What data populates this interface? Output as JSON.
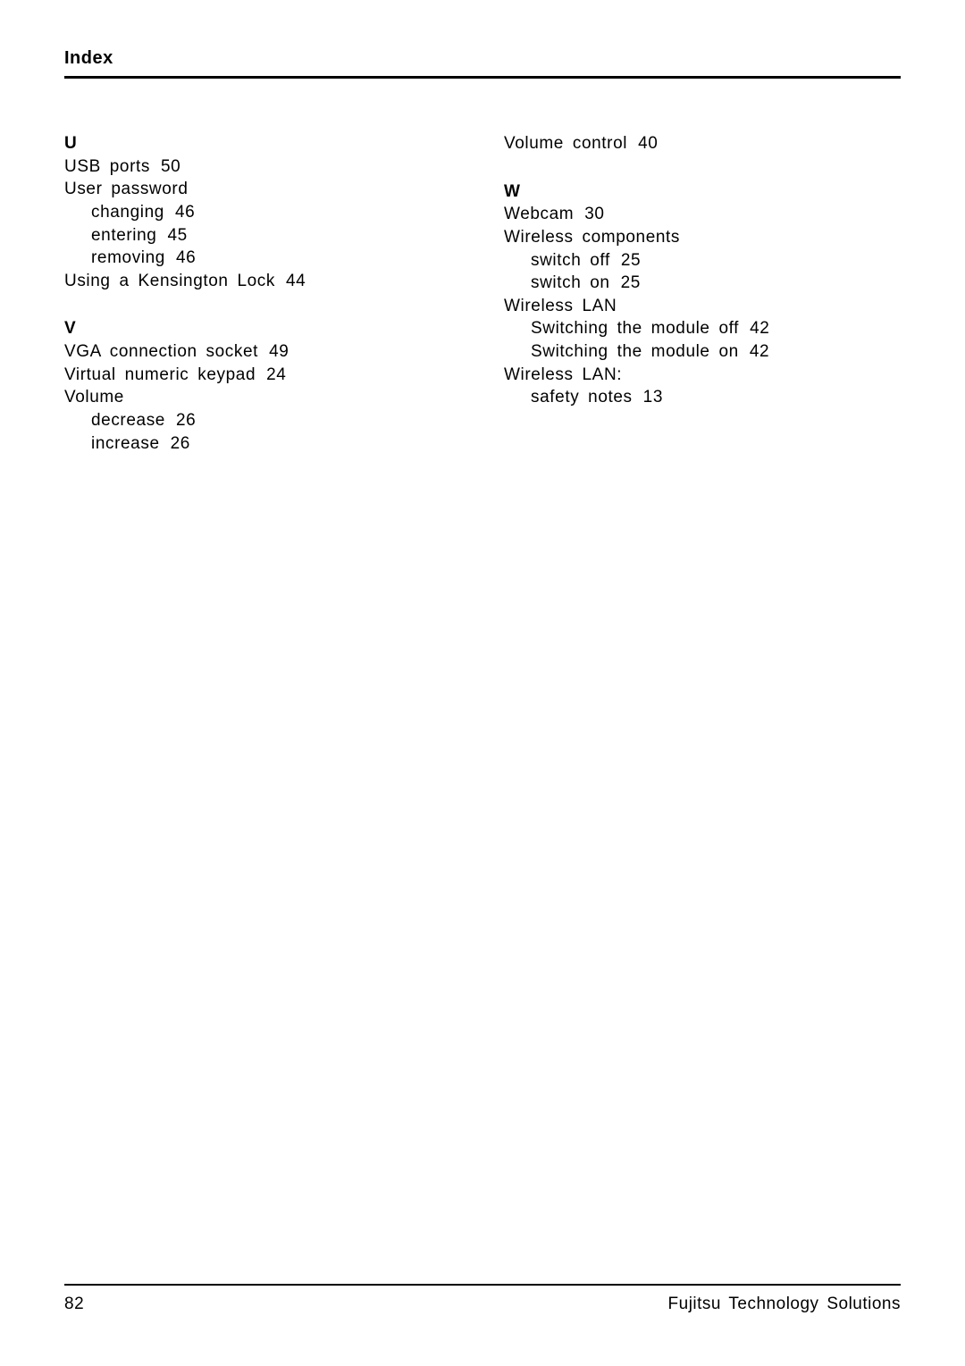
{
  "header": {
    "title": "Index"
  },
  "left": {
    "u": {
      "letter": "U",
      "usb_ports": {
        "text": "USB ports",
        "page": "50"
      },
      "user_password": {
        "text": "User password"
      },
      "changing": {
        "text": "changing",
        "page": "46"
      },
      "entering": {
        "text": "entering",
        "page": "45"
      },
      "removing": {
        "text": "removing",
        "page": "46"
      },
      "kensington": {
        "text": "Using a Kensington Lock",
        "page": "44"
      }
    },
    "v": {
      "letter": "V",
      "vga": {
        "text": "VGA connection socket",
        "page": "49"
      },
      "virtual_keypad": {
        "text": "Virtual numeric keypad",
        "page": "24"
      },
      "volume": {
        "text": "Volume"
      },
      "decrease": {
        "text": "decrease",
        "page": "26"
      },
      "increase": {
        "text": "increase",
        "page": "26"
      }
    }
  },
  "right": {
    "volume_control": {
      "text": "Volume control",
      "page": "40"
    },
    "w": {
      "letter": "W",
      "webcam": {
        "text": "Webcam",
        "page": "30"
      },
      "wireless_components": {
        "text": "Wireless components"
      },
      "switch_off": {
        "text": "switch off",
        "page": "25"
      },
      "switch_on": {
        "text": "switch on",
        "page": "25"
      },
      "wireless_lan": {
        "text": "Wireless LAN"
      },
      "module_off": {
        "text": "Switching the module off",
        "page": "42"
      },
      "module_on": {
        "text": "Switching the module on",
        "page": "42"
      },
      "wireless_lan_colon": {
        "text": "Wireless LAN:"
      },
      "safety_notes": {
        "text": "safety notes",
        "page": "13"
      }
    }
  },
  "footer": {
    "page": "82",
    "company": "Fujitsu Technology Solutions"
  }
}
